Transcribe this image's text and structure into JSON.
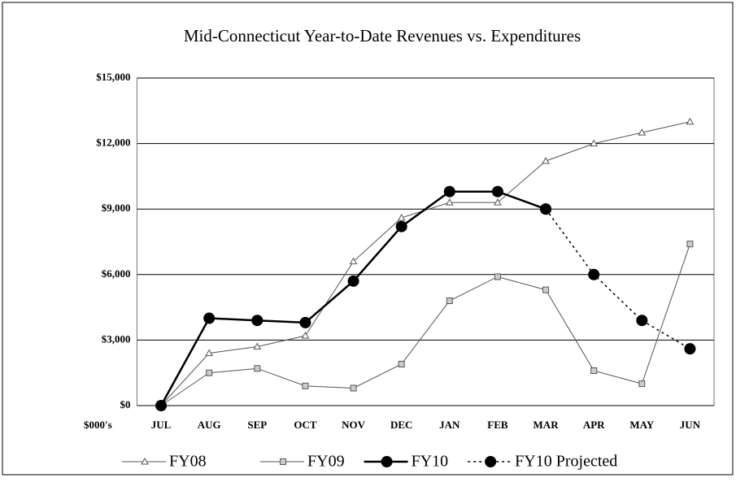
{
  "chart_data": {
    "type": "line",
    "title": "Mid-Connecticut Year-to-Date Revenues vs. Expenditures",
    "y_label": "$000's",
    "categories": [
      "JUL",
      "AUG",
      "SEP",
      "OCT",
      "NOV",
      "DEC",
      "JAN",
      "FEB",
      "MAR",
      "APR",
      "MAY",
      "JUN"
    ],
    "ylim": [
      0,
      15000
    ],
    "yticks": [
      {
        "value": 0,
        "label": "$0"
      },
      {
        "value": 3000,
        "label": "$3,000"
      },
      {
        "value": 6000,
        "label": "$6,000"
      },
      {
        "value": 9000,
        "label": "$9,000"
      },
      {
        "value": 12000,
        "label": "$12,000"
      },
      {
        "value": 15000,
        "label": "$15,000"
      }
    ],
    "grid": true,
    "legend": "bottom",
    "series": [
      {
        "name": "FY08",
        "color": "#555555",
        "marker": "triangle",
        "line_width": 1,
        "dashed": false,
        "values": [
          0,
          2400,
          2700,
          3200,
          6600,
          8600,
          9300,
          9300,
          11200,
          12000,
          12500,
          13000
        ]
      },
      {
        "name": "FY09",
        "color": "#555555",
        "marker": "square",
        "line_width": 1,
        "dashed": false,
        "values": [
          0,
          1500,
          1700,
          900,
          800,
          1900,
          4800,
          5900,
          5300,
          1600,
          1000,
          7400
        ]
      },
      {
        "name": "FY10",
        "color": "#000000",
        "marker": "circle",
        "line_width": 2.5,
        "dashed": false,
        "values": [
          0,
          4000,
          3900,
          3800,
          5700,
          8200,
          9800,
          9800,
          9000,
          null,
          null,
          null
        ]
      },
      {
        "name": "FY10 Projected",
        "color": "#000000",
        "marker": "circle",
        "line_width": 1.5,
        "dashed": true,
        "values": [
          null,
          null,
          null,
          null,
          null,
          null,
          null,
          null,
          9000,
          6000,
          3900,
          2600
        ]
      }
    ]
  }
}
